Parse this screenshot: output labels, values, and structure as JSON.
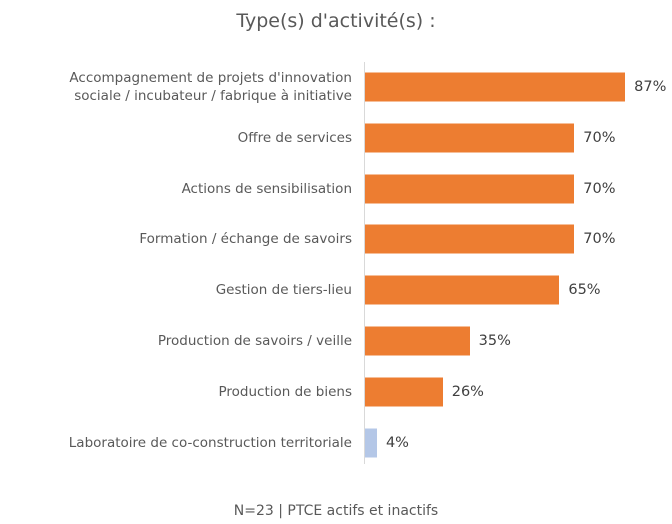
{
  "chart_data": {
    "type": "bar",
    "orientation": "horizontal",
    "title": "Type(s) d'activité(s) :",
    "categories": [
      "Accompagnement de projets d'innovation\nsociale / incubateur / fabrique à initiative",
      "Offre de services",
      "Actions de sensibilisation",
      "Formation / échange de savoirs",
      "Gestion de tiers-lieu",
      "Production de savoirs / veille",
      "Production de biens",
      "Laboratoire de co-construction territoriale"
    ],
    "values": [
      87,
      70,
      70,
      70,
      65,
      35,
      26,
      4
    ],
    "value_labels": [
      "87%",
      "70%",
      "70%",
      "70%",
      "65%",
      "35%",
      "26%",
      "4%"
    ],
    "colors": [
      "#ed7d31",
      "#ed7d31",
      "#ed7d31",
      "#ed7d31",
      "#ed7d31",
      "#ed7d31",
      "#ed7d31",
      "#b4c7e7"
    ],
    "footnote": "N=23 | PTCE actifs et inactifs"
  }
}
